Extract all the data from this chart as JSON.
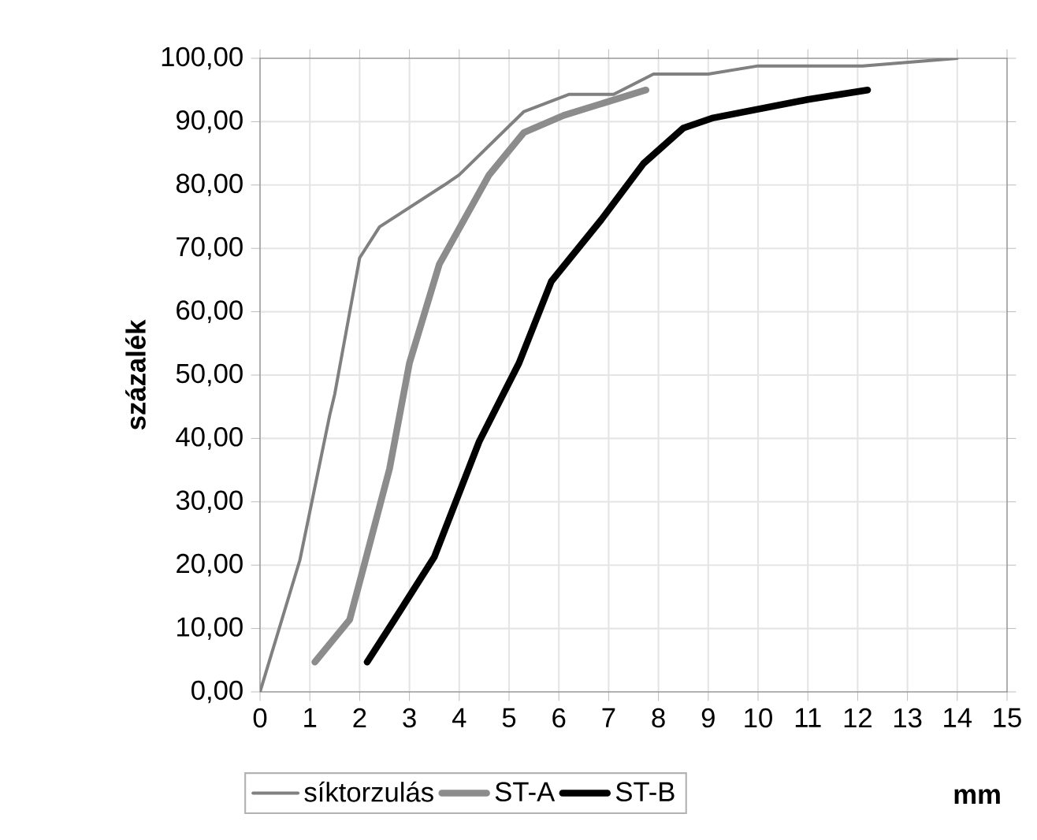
{
  "chart_data": {
    "type": "line",
    "xlabel": "mm",
    "ylabel": "százalék",
    "xlim": [
      0,
      15
    ],
    "ylim": [
      0,
      100
    ],
    "xticks": [
      0,
      1,
      2,
      3,
      4,
      5,
      6,
      7,
      8,
      9,
      10,
      11,
      12,
      13,
      14,
      15
    ],
    "yticks": [
      {
        "value": 0,
        "label": "0,00"
      },
      {
        "value": 10,
        "label": "10,00"
      },
      {
        "value": 20,
        "label": "20,00"
      },
      {
        "value": 30,
        "label": "30,00"
      },
      {
        "value": 40,
        "label": "40,00"
      },
      {
        "value": 50,
        "label": "50,00"
      },
      {
        "value": 60,
        "label": "60,00"
      },
      {
        "value": 70,
        "label": "70,00"
      },
      {
        "value": 80,
        "label": "80,00"
      },
      {
        "value": 90,
        "label": "90,00"
      },
      {
        "value": 100,
        "label": "100,00"
      }
    ],
    "grid": true,
    "legend": "bottom",
    "marker": "none",
    "line_style": "solid",
    "series": [
      {
        "name": "síktorzulás",
        "color": "#808080",
        "x": [
          0,
          0.8,
          1.4,
          1.5,
          2.0,
          2.4,
          3.7,
          4.0,
          5.3,
          6.2,
          7.1,
          7.9,
          9.0,
          10.0,
          12.1,
          14.0
        ],
        "values": [
          0,
          20.8,
          43.7,
          47,
          68.5,
          73.4,
          80,
          81.6,
          91.6,
          94.3,
          94.3,
          97.5,
          97.5,
          98.8,
          98.8,
          100
        ]
      },
      {
        "name": "ST-A",
        "color": "#8c8c8c",
        "x": [
          1.1,
          1.8,
          2.1,
          2.6,
          3.0,
          3.6,
          4.6,
          5.3,
          6.1,
          7.75
        ],
        "values": [
          4.7,
          11.4,
          20.3,
          35.2,
          51.9,
          67.5,
          81.6,
          88.3,
          91,
          95
        ]
      },
      {
        "name": "ST-B",
        "color": "#000000",
        "x": [
          2.15,
          2.7,
          3.5,
          4.4,
          5.2,
          5.85,
          6.85,
          7.7,
          8.5,
          9.1,
          11.0,
          12.2
        ],
        "values": [
          4.7,
          11.4,
          21.3,
          39.5,
          51.9,
          64.8,
          74.5,
          83.4,
          89,
          90.6,
          93.5,
          95
        ]
      }
    ]
  }
}
